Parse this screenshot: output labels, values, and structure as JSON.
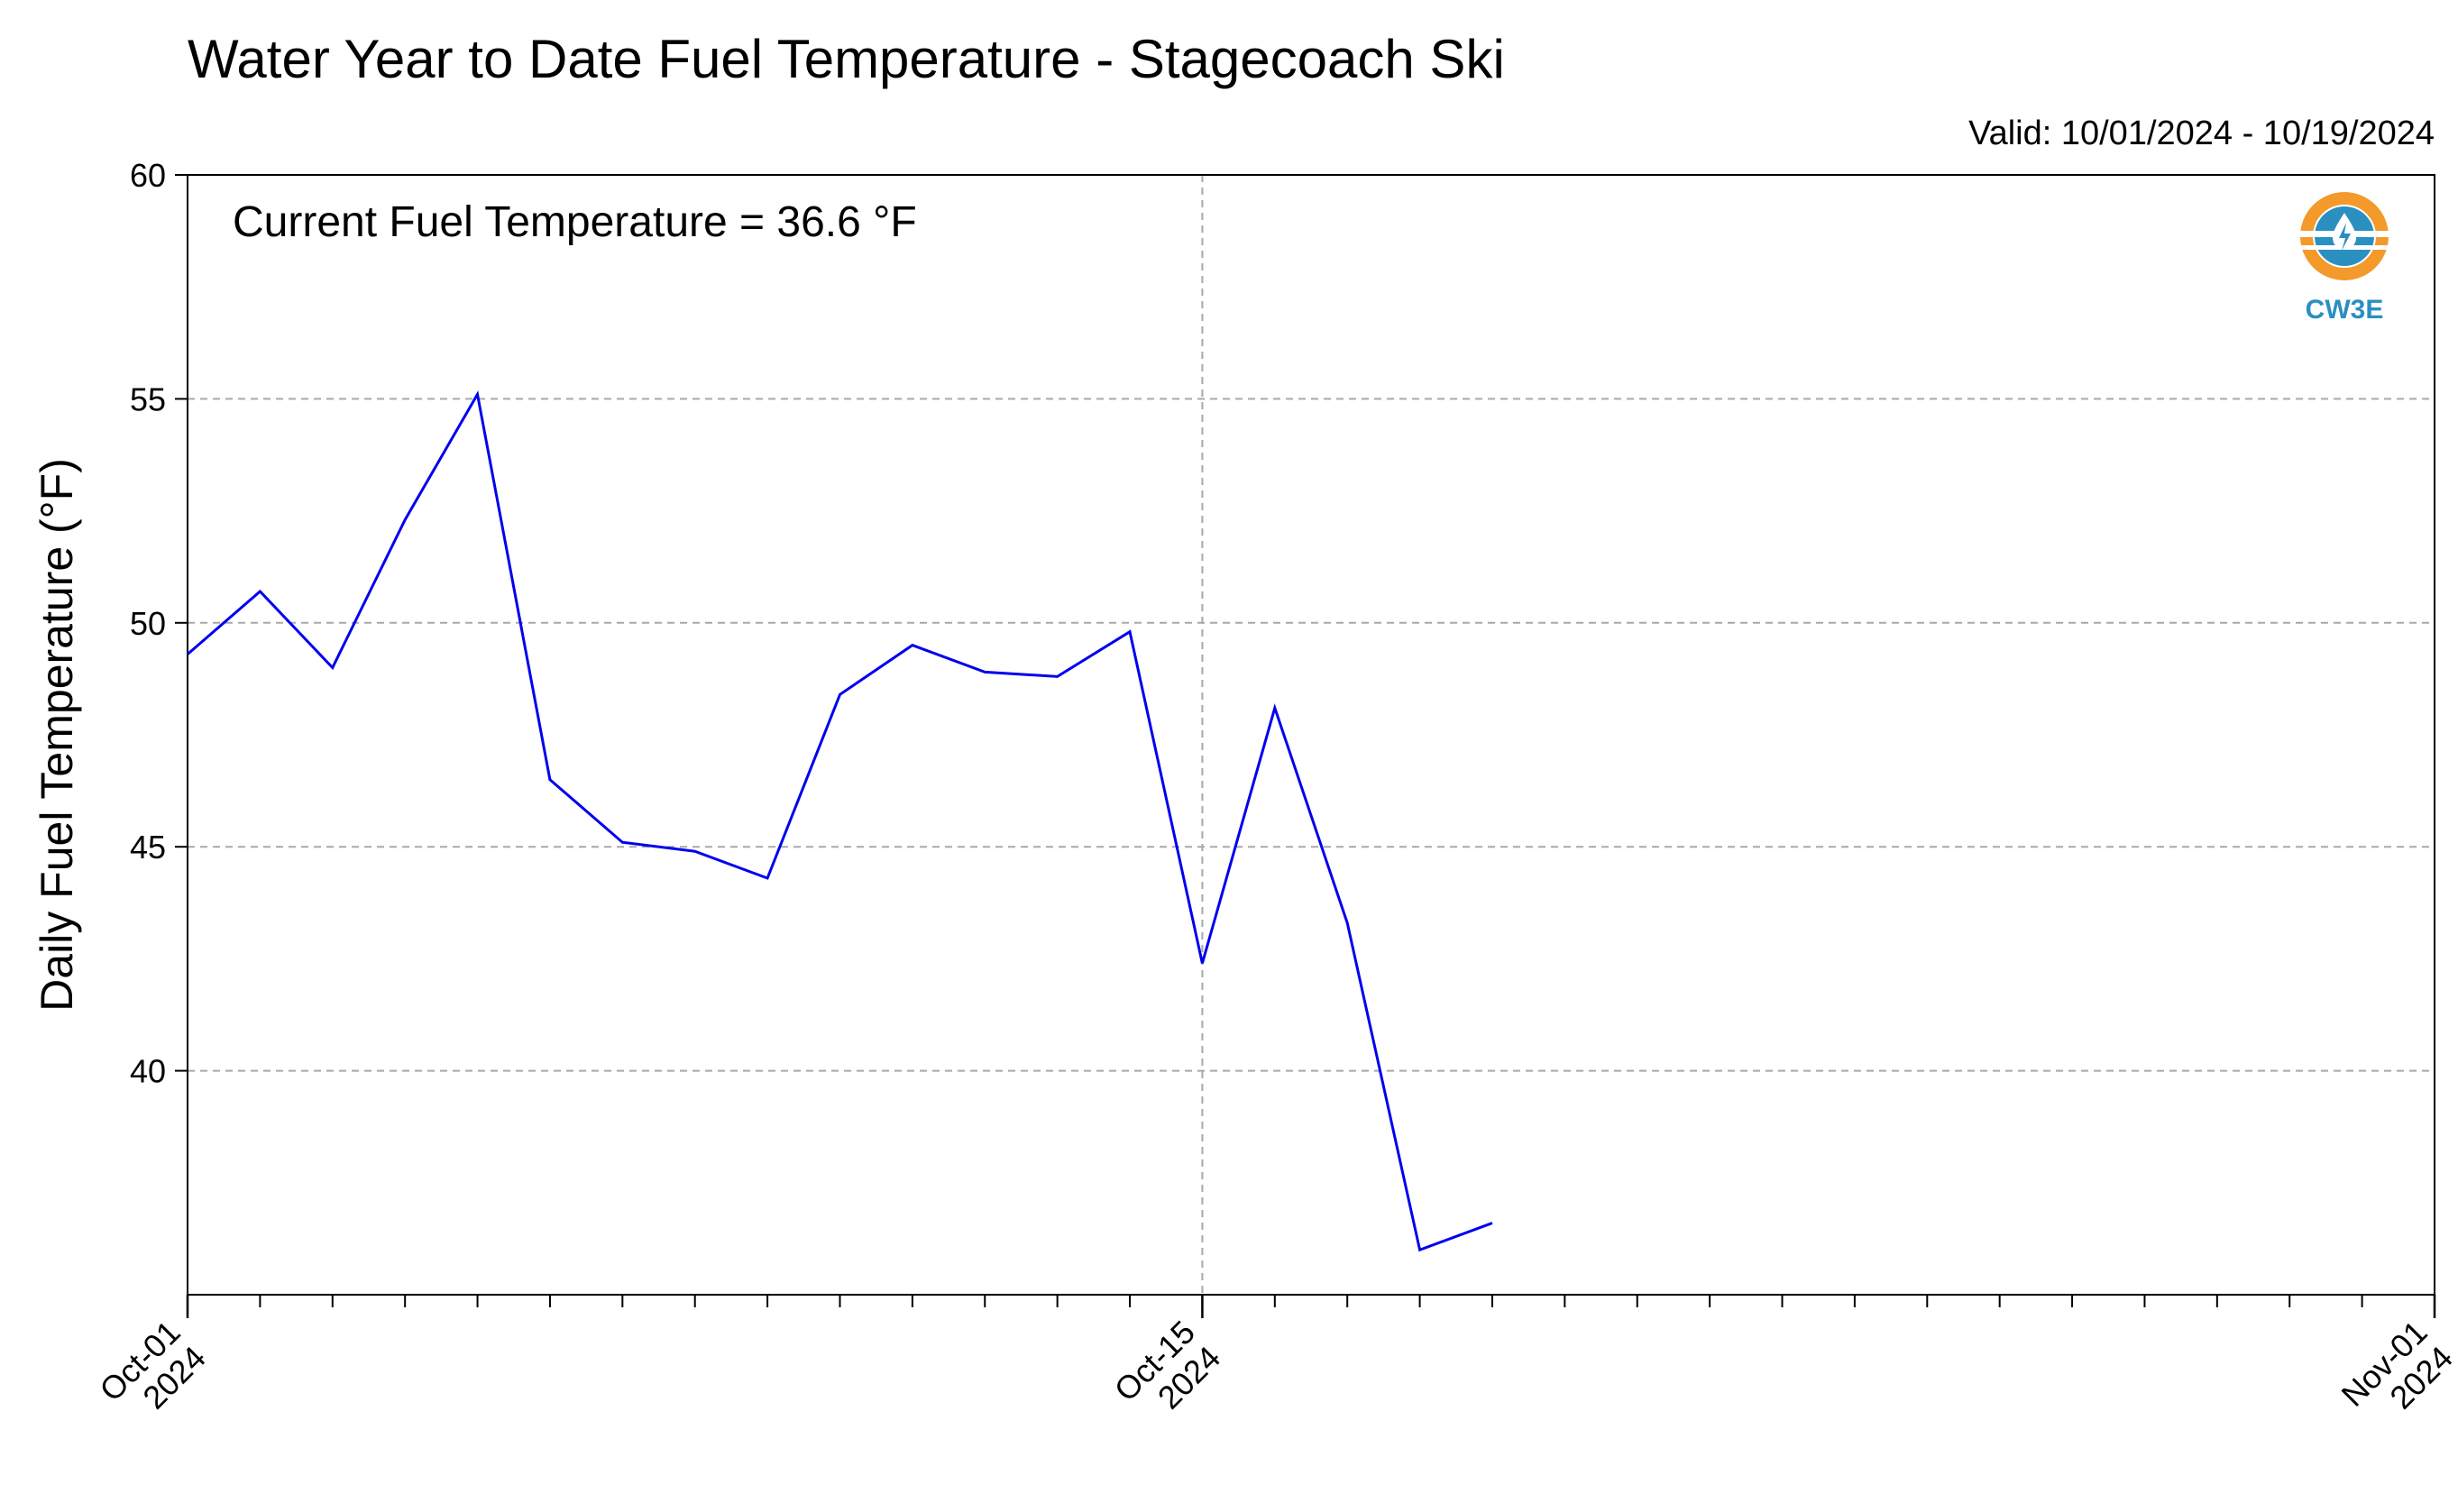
{
  "chart_data": {
    "type": "line",
    "title": "Water Year to Date Fuel Temperature - Stagecoach Ski",
    "subtitle": "Valid: 10/01/2024 - 10/19/2024",
    "annotation": "Current Fuel Temperature = 36.6  °F",
    "xlabel": "",
    "ylabel": "Daily Fuel Temperature (°F)",
    "xlim": [
      "2024-10-01",
      "2024-11-01"
    ],
    "ylim": [
      35,
      60
    ],
    "yticks": [
      40,
      45,
      50,
      55,
      60
    ],
    "xtick_labels": [
      {
        "date": "2024-10-01",
        "line1": "Oct-01",
        "line2": "2024"
      },
      {
        "date": "2024-10-15",
        "line1": "Oct-15",
        "line2": "2024"
      },
      {
        "date": "2024-11-01",
        "line1": "Nov-01",
        "line2": "2024"
      }
    ],
    "grid": true,
    "series": [
      {
        "color": "#0000ee",
        "x": [
          "2024-10-01",
          "2024-10-02",
          "2024-10-03",
          "2024-10-04",
          "2024-10-05",
          "2024-10-06",
          "2024-10-07",
          "2024-10-08",
          "2024-10-09",
          "2024-10-10",
          "2024-10-11",
          "2024-10-12",
          "2024-10-13",
          "2024-10-14",
          "2024-10-15",
          "2024-10-16",
          "2024-10-17",
          "2024-10-18",
          "2024-10-19"
        ],
        "y": [
          49.3,
          50.7,
          49.0,
          52.3,
          55.1,
          46.5,
          45.1,
          44.9,
          44.3,
          48.4,
          49.5,
          48.9,
          48.8,
          49.8,
          42.4,
          48.1,
          43.3,
          36.0,
          36.6
        ]
      }
    ]
  },
  "logo": {
    "text": "CW3E",
    "orange": "#f39a2b",
    "blue": "#2a8fc1"
  }
}
